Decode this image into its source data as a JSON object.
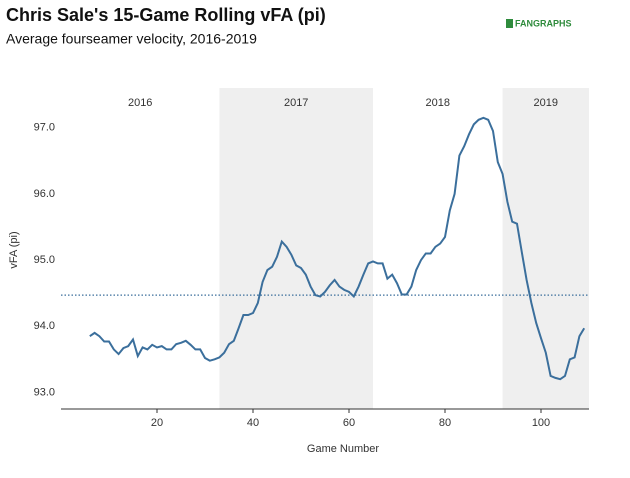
{
  "chart_data": {
    "type": "line",
    "title": "Chris Sale's 15-Game Rolling vFA (pi)",
    "subtitle": "Average fourseamer velocity, 2016-2019",
    "source": "FANGRAPHS",
    "x_label": "Game Number",
    "y_label": "vFA (pi)",
    "xlim": [
      0,
      110
    ],
    "ylim": [
      92.75,
      97.6
    ],
    "xticks": [
      20,
      40,
      60,
      80,
      100
    ],
    "yticks": [
      {
        "value": 93,
        "label": "93.0"
      },
      {
        "value": 94,
        "label": "94.0"
      },
      {
        "value": 95,
        "label": "95.0"
      },
      {
        "value": 96,
        "label": "96.0"
      },
      {
        "value": 97,
        "label": "97.0"
      }
    ],
    "regions": [
      {
        "label": "2016",
        "start": 0,
        "end": 33,
        "shaded": false
      },
      {
        "label": "2017",
        "start": 33,
        "end": 65,
        "shaded": true
      },
      {
        "label": "2018",
        "start": 65,
        "end": 92,
        "shaded": false
      },
      {
        "label": "2019",
        "start": 92,
        "end": 110,
        "shaded": true
      }
    ],
    "region_color": "#efefef",
    "reference_line": 94.47,
    "reference_color": "#3b6f9c",
    "x": [
      6,
      7,
      8,
      9,
      10,
      11,
      12,
      13,
      14,
      15,
      16,
      17,
      18,
      19,
      20,
      21,
      22,
      23,
      24,
      25,
      26,
      27,
      28,
      29,
      30,
      31,
      32,
      33,
      34,
      35,
      36,
      37,
      38,
      39,
      40,
      41,
      42,
      43,
      44,
      45,
      46,
      47,
      48,
      49,
      50,
      51,
      52,
      53,
      54,
      55,
      56,
      57,
      58,
      59,
      60,
      61,
      62,
      63,
      64,
      65,
      66,
      67,
      68,
      69,
      70,
      71,
      72,
      73,
      74,
      75,
      76,
      77,
      78,
      79,
      80,
      81,
      82,
      83,
      84,
      85,
      86,
      87,
      88,
      89,
      90,
      91,
      92,
      93,
      94,
      95,
      96,
      97,
      98,
      99,
      100,
      101,
      102,
      103,
      104,
      105,
      106,
      107,
      108,
      109
    ],
    "series": [
      {
        "name": "vFA (pi)",
        "color": "#3b6f9c",
        "values": [
          93.85,
          93.9,
          93.85,
          93.77,
          93.77,
          93.65,
          93.58,
          93.67,
          93.7,
          93.8,
          93.55,
          93.68,
          93.65,
          93.72,
          93.68,
          93.7,
          93.65,
          93.65,
          93.73,
          93.75,
          93.78,
          93.72,
          93.65,
          93.65,
          93.52,
          93.48,
          93.5,
          93.53,
          93.6,
          93.73,
          93.78,
          93.97,
          94.17,
          94.17,
          94.2,
          94.35,
          94.67,
          94.85,
          94.9,
          95.05,
          95.28,
          95.2,
          95.08,
          94.92,
          94.88,
          94.78,
          94.6,
          94.47,
          94.45,
          94.52,
          94.62,
          94.7,
          94.6,
          94.55,
          94.52,
          94.45,
          94.6,
          94.78,
          94.95,
          94.98,
          94.95,
          94.95,
          94.72,
          94.78,
          94.65,
          94.48,
          94.48,
          94.6,
          94.85,
          95.0,
          95.1,
          95.1,
          95.2,
          95.25,
          95.35,
          95.75,
          96.0,
          96.58,
          96.72,
          96.9,
          97.05,
          97.12,
          97.15,
          97.12,
          96.95,
          96.48,
          96.3,
          95.88,
          95.58,
          95.55,
          95.12,
          94.7,
          94.35,
          94.05,
          93.82,
          93.6,
          93.25,
          93.22,
          93.2,
          93.25,
          93.5,
          93.53,
          93.85,
          93.97
        ]
      }
    ]
  }
}
